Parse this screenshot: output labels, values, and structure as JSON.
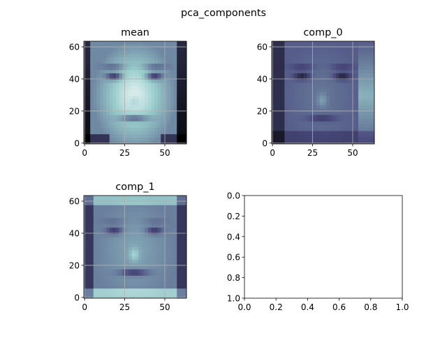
{
  "figure": {
    "suptitle": "pca_components"
  },
  "chart_data": [
    {
      "type": "heatmap",
      "title": "mean",
      "image_size": [
        64,
        64
      ],
      "colormap": "bone",
      "description_values": "face image",
      "xlim": [
        -0.5,
        63.5
      ],
      "ylim": [
        63.5,
        -0.5
      ],
      "xticks": [
        0,
        25,
        50
      ],
      "yticks": [
        0,
        20,
        40,
        60
      ],
      "grid": true,
      "variant": "mean"
    },
    {
      "type": "heatmap",
      "title": "comp_0",
      "image_size": [
        64,
        64
      ],
      "colormap": "bone",
      "xlim": [
        -0.5,
        63.5
      ],
      "ylim": [
        63.5,
        -0.5
      ],
      "xticks": [
        0,
        25,
        50
      ],
      "yticks": [
        0,
        20,
        40,
        60
      ],
      "grid": true,
      "variant": "comp_0"
    },
    {
      "type": "heatmap",
      "title": "comp_1",
      "image_size": [
        64,
        64
      ],
      "colormap": "bone",
      "xlim": [
        -0.5,
        63.5
      ],
      "ylim": [
        63.5,
        -0.5
      ],
      "xticks": [
        0,
        25,
        50
      ],
      "yticks": [
        0,
        20,
        40,
        60
      ],
      "grid": true,
      "variant": "comp_1"
    },
    {
      "type": "line",
      "title": "",
      "series": [],
      "xlim": [
        0.0,
        1.0
      ],
      "ylim": [
        0.0,
        1.0
      ],
      "xticks": [
        0.0,
        0.2,
        0.4,
        0.6,
        0.8,
        1.0
      ],
      "yticks": [
        0.0,
        0.2,
        0.4,
        0.6,
        0.8,
        1.0
      ],
      "grid": false
    }
  ]
}
